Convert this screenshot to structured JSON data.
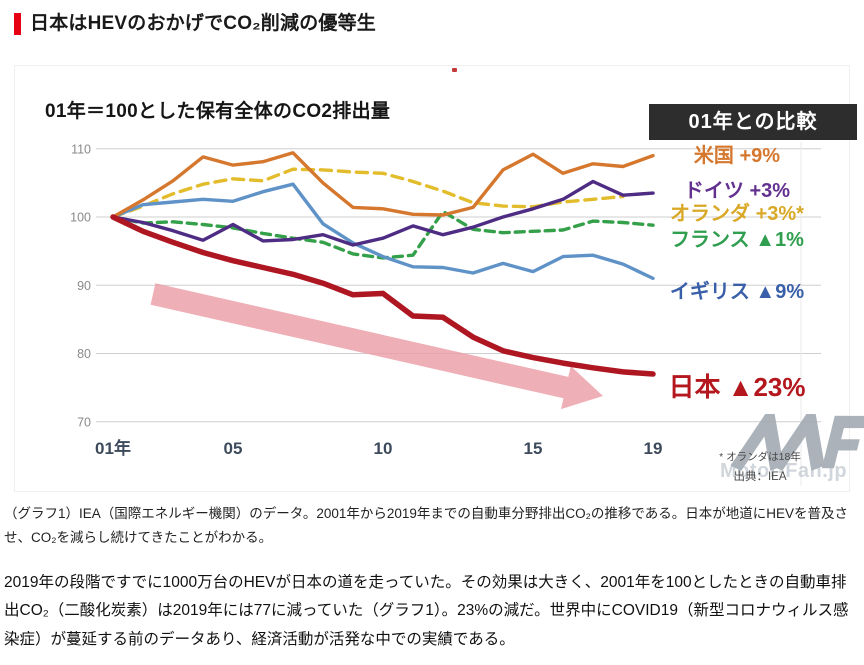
{
  "page": {
    "title": "日本はHEVのおかげでCO₂削減の優等生",
    "caption": "（グラフ1）IEA（国際エネルギー機関）のデータ。2001年から2019年までの自動車分野排出CO₂の推移である。日本が地道にHEVを普及させ、CO₂を減らし続けてきたことがわかる。",
    "body": "2019年の段階ですでに1000万台のHEVが日本の道を走っていた。その効果は大きく、2001年を100としたときの自動車排出CO₂（二酸化炭素）は2019年には77に減っていた（グラフ1）。23%の減だ。世界中にCOVID19（新型コロナウィルス感染症）が蔓延する前のデータあり、経済活動が活発な中での実績である。"
  },
  "chart": {
    "title": "01年＝100とした保有全体のCO2排出量",
    "legend_header": "01年との比較",
    "legend": [
      {
        "label": "米国",
        "change": "+9%",
        "color": "#d6772e"
      },
      {
        "label": "ドイツ",
        "change": "+3%",
        "color": "#62308f"
      },
      {
        "label": "オランダ",
        "change": "+3%*",
        "color": "#d9a826"
      },
      {
        "label": "フランス",
        "change": "▲1%",
        "color": "#2f9e4f"
      },
      {
        "label": "イギリス",
        "change": "▲9%",
        "color": "#3a5fa9"
      },
      {
        "label": "日本",
        "change": "▲23%",
        "color": "#b5171e"
      }
    ],
    "footnote": "* オランダは18年",
    "source": "出典：IEA",
    "watermark": "Motor-Fan.jp",
    "accent_red": "#e60012",
    "arrow_color": "#eb9ba4",
    "legend_box_bg": "#2d2d2d"
  },
  "chart_data": {
    "type": "line",
    "x": [
      2001,
      2002,
      2003,
      2004,
      2005,
      2006,
      2007,
      2008,
      2009,
      2010,
      2011,
      2012,
      2013,
      2014,
      2015,
      2016,
      2017,
      2018,
      2019
    ],
    "x_ticks": [
      {
        "year": 2001,
        "label": "01年"
      },
      {
        "year": 2005,
        "label": "05"
      },
      {
        "year": 2010,
        "label": "10"
      },
      {
        "year": 2015,
        "label": "15"
      },
      {
        "year": 2019,
        "label": "19"
      }
    ],
    "yticks": [
      110,
      100,
      90,
      80,
      70
    ],
    "ylim": [
      70,
      112
    ],
    "grid": true,
    "legend_position": "right",
    "series": [
      {
        "id": "netherlands",
        "name": "オランダ",
        "color": "#e3bc2b",
        "dash": "11,7",
        "width": 3.4,
        "values": [
          100,
          101.6,
          103.4,
          104.8,
          105.6,
          105.3,
          107.0,
          106.9,
          106.6,
          106.4,
          105.2,
          103.8,
          102.1,
          101.6,
          101.5,
          102.2,
          102.6,
          103.0,
          null
        ]
      },
      {
        "id": "france",
        "name": "フランス",
        "color": "#35a04a",
        "dash": "9,6",
        "width": 3.4,
        "values": [
          100,
          99.1,
          99.3,
          98.9,
          98.4,
          97.6,
          96.9,
          96.3,
          94.6,
          94.0,
          94.4,
          100.8,
          98.2,
          97.7,
          97.9,
          98.1,
          99.4,
          99.2,
          98.8
        ]
      },
      {
        "id": "uk",
        "name": "イギリス",
        "color": "#5f93c8",
        "dash": "",
        "width": 3.4,
        "values": [
          100,
          101.8,
          102.2,
          102.6,
          102.3,
          103.7,
          104.8,
          99.0,
          96.2,
          94.2,
          92.7,
          92.6,
          91.8,
          93.2,
          92.0,
          94.2,
          94.4,
          93.1,
          91.0
        ]
      },
      {
        "id": "germany",
        "name": "ドイツ",
        "color": "#4e2c84",
        "dash": "",
        "width": 3.4,
        "values": [
          100,
          99.2,
          98.0,
          96.6,
          98.9,
          96.5,
          96.7,
          97.4,
          95.9,
          96.9,
          98.7,
          97.4,
          98.5,
          100.0,
          101.2,
          102.6,
          105.2,
          103.2,
          103.5
        ]
      },
      {
        "id": "usa",
        "name": "米国",
        "color": "#d6772e",
        "dash": "",
        "width": 3.4,
        "values": [
          100,
          102.5,
          105.3,
          108.8,
          107.6,
          108.1,
          109.4,
          105.0,
          101.4,
          101.2,
          100.4,
          100.3,
          101.4,
          106.9,
          109.2,
          106.4,
          107.8,
          107.4,
          109.0
        ]
      },
      {
        "id": "japan",
        "name": "日本",
        "color": "#ae1722",
        "dash": "",
        "width": 5.5,
        "values": [
          100,
          97.9,
          96.3,
          94.8,
          93.6,
          92.6,
          91.6,
          90.3,
          88.6,
          88.8,
          85.5,
          85.3,
          82.4,
          80.4,
          79.4,
          78.6,
          77.9,
          77.3,
          77.0
        ]
      }
    ]
  }
}
